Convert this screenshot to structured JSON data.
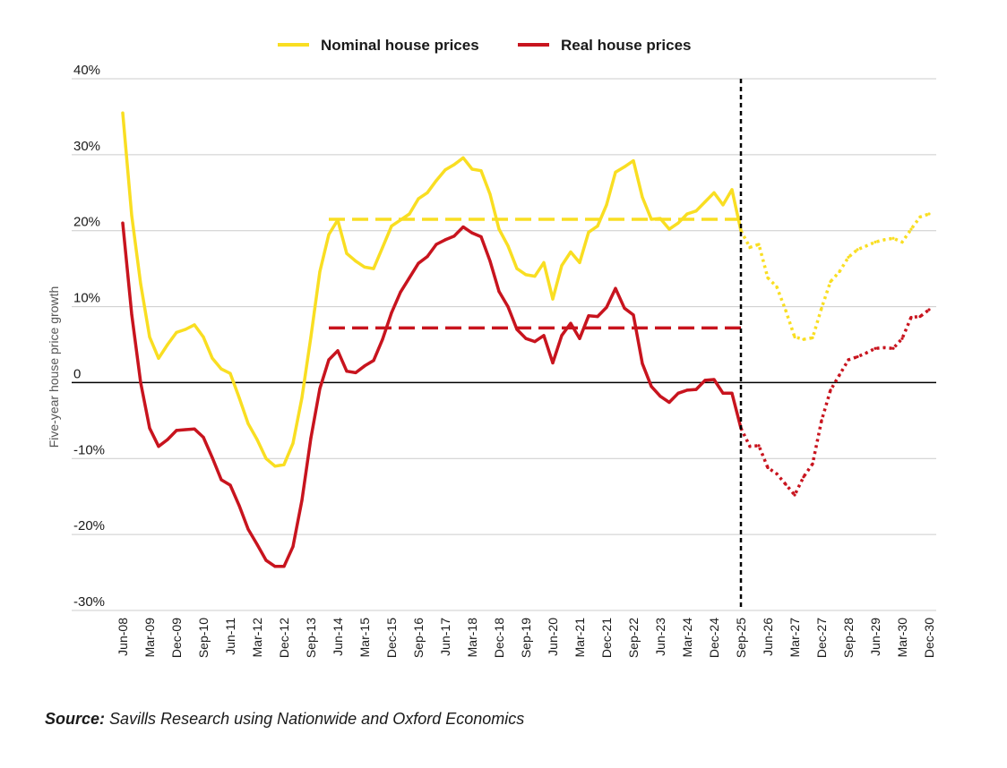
{
  "chart_data": {
    "type": "line",
    "title": "",
    "xlabel": "",
    "ylabel": "Five-year house price growth",
    "ylim": [
      -30,
      40
    ],
    "y_ticks": [
      40,
      30,
      20,
      10,
      0,
      -10,
      -20,
      -30
    ],
    "y_tick_labels": [
      "40%",
      "30%",
      "20%",
      "10%",
      "0",
      "-10%",
      "-20%",
      "-30%"
    ],
    "x_tick_labels": [
      "Jun-08",
      "Mar-09",
      "Dec-09",
      "Sep-10",
      "Jun-11",
      "Mar-12",
      "Dec-12",
      "Sep-13",
      "Jun-14",
      "Mar-15",
      "Dec-15",
      "Sep-16",
      "Jun-17",
      "Mar-18",
      "Dec-18",
      "Sep-19",
      "Jun-20",
      "Mar-21",
      "Dec-21",
      "Sep-22",
      "Jun-23",
      "Mar-24",
      "Dec-24",
      "Sep-25",
      "Jun-26",
      "Mar-27",
      "Dec-27",
      "Sep-28",
      "Jun-29",
      "Mar-30",
      "Dec-30"
    ],
    "x_start": "Jun-08",
    "x_step": "quarter",
    "forecast_start_index": 69,
    "forecast_marker_label": "Sep-25",
    "colors": {
      "nominal": "#f9de22",
      "real": "#c8141e",
      "forecast_line": "#000000",
      "grid": "#cccccc",
      "zero_line": "#000000"
    },
    "legend": {
      "position": "top-center"
    },
    "series": [
      {
        "name": "Nominal house prices",
        "color": "#f9de22",
        "values": [
          35.5,
          22,
          13,
          6,
          3.2,
          5,
          6.6,
          7,
          7.6,
          6,
          3.2,
          1.8,
          1.2,
          -2,
          -5.4,
          -7.5,
          -10,
          -11,
          -10.8,
          -8,
          -2,
          6,
          14.6,
          19.5,
          21.4,
          17,
          16,
          15.2,
          15,
          17.8,
          20.6,
          21.4,
          22.2,
          24.2,
          25,
          26.6,
          28,
          28.7,
          29.6,
          28.1,
          27.9,
          24.8,
          20.2,
          18,
          15,
          14.2,
          14,
          15.8,
          11,
          15.4,
          17.2,
          15.8,
          19.8,
          20.6,
          23.4,
          27.7,
          28.4,
          29.2,
          24.4,
          21.5,
          21.6,
          20.2,
          21,
          22.2,
          22.6,
          23.8,
          25,
          23.4,
          25.4,
          20,
          17.8,
          18.2,
          13.8,
          12.6,
          9.5,
          6,
          5.7,
          5.9,
          9.8,
          13.3,
          14.6,
          16.5,
          17.5,
          18,
          18.5,
          18.8,
          19,
          18.5,
          20.2,
          21.8,
          22.2
        ],
        "dashed_average": 21.5
      },
      {
        "name": "Real house prices",
        "color": "#c8141e",
        "values": [
          21,
          9,
          0,
          -6,
          -8.4,
          -7.5,
          -6.3,
          -6.2,
          -6.1,
          -7.2,
          -9.9,
          -12.8,
          -13.5,
          -16.2,
          -19.3,
          -21.3,
          -23.4,
          -24.2,
          -24.2,
          -21.6,
          -15.5,
          -7.3,
          -0.8,
          3,
          4.2,
          1.5,
          1.3,
          2.2,
          2.9,
          5.7,
          9.2,
          11.9,
          13.8,
          15.7,
          16.6,
          18.2,
          18.8,
          19.3,
          20.5,
          19.7,
          19.2,
          16,
          12,
          10,
          7,
          5.8,
          5.4,
          6.2,
          2.6,
          6.2,
          7.8,
          5.8,
          8.8,
          8.7,
          9.9,
          12.4,
          9.8,
          8.9,
          2.5,
          -0.5,
          -1.8,
          -2.6,
          -1.4,
          -1,
          -0.9,
          0.3,
          0.4,
          -1.4,
          -1.4,
          -6,
          -8.4,
          -8.3,
          -11.2,
          -12,
          -13.4,
          -14.8,
          -12.4,
          -10.7,
          -5,
          -1,
          1,
          3,
          3.4,
          3.9,
          4.5,
          4.6,
          4.5,
          5.8,
          8.6,
          8.7,
          9.6
        ],
        "dashed_average": 7.2
      }
    ]
  },
  "legend": {
    "nominal_label": "Nominal house prices",
    "real_label": "Real house prices"
  },
  "source": {
    "label": "Source:",
    "text": "Savills Research using Nationwide and Oxford Economics"
  }
}
